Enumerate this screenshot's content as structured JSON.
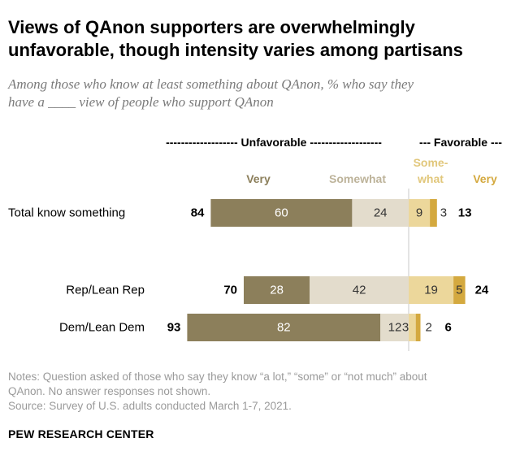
{
  "title_line1": "Views of QAnon supporters are overwhelmingly",
  "title_line2": "unfavorable, though intensity varies among partisans",
  "subtitle_line1": "Among those who know at least something about QAnon, % who say they",
  "subtitle_line2": "have a ____ view of people who support QAnon",
  "notes": {
    "line1": "Notes: Question asked of those who say they know “a lot,” “some” or “not much” about",
    "line2": "QAnon. No answer responses not shown.",
    "source": "Source: Survey of U.S. adults conducted March 1-7, 2021."
  },
  "brand": "PEW RESEARCH CENTER",
  "chart_data": {
    "type": "bar",
    "orientation": "horizontal-diverging",
    "group_labels": {
      "unfavorable": "------------------- Unfavorable -------------------",
      "favorable": "--- Favorable ---"
    },
    "categories": [
      "Total know something",
      "Rep/Lean Rep",
      "Dem/Lean Dem"
    ],
    "series": [
      {
        "name": "Very",
        "side": "unfavorable",
        "color": "#8c7f5b",
        "label_color": "#8c7f5b",
        "label_color_in_bar": "#ffffff",
        "values": [
          60,
          28,
          82
        ]
      },
      {
        "name": "Somewhat",
        "side": "unfavorable",
        "color": "#e3dccc",
        "label_color": "#bdb39a",
        "label_color_in_bar": "#333333",
        "values": [
          24,
          42,
          12
        ]
      },
      {
        "name": "Some-what",
        "name_lines": [
          "Some-",
          "what"
        ],
        "side": "favorable",
        "color": "#ecd79b",
        "label_color": "#e1c77b",
        "label_color_in_bar": "#333333",
        "values": [
          9,
          19,
          3
        ]
      },
      {
        "name": "Very",
        "side": "favorable",
        "color": "#d4a93f",
        "label_color": "#d4a93f",
        "label_color_in_bar": "#333333",
        "values": [
          3,
          5,
          2
        ]
      }
    ],
    "totals": {
      "unfavorable": [
        84,
        70,
        93
      ],
      "favorable": [
        13,
        24,
        6
      ]
    }
  }
}
